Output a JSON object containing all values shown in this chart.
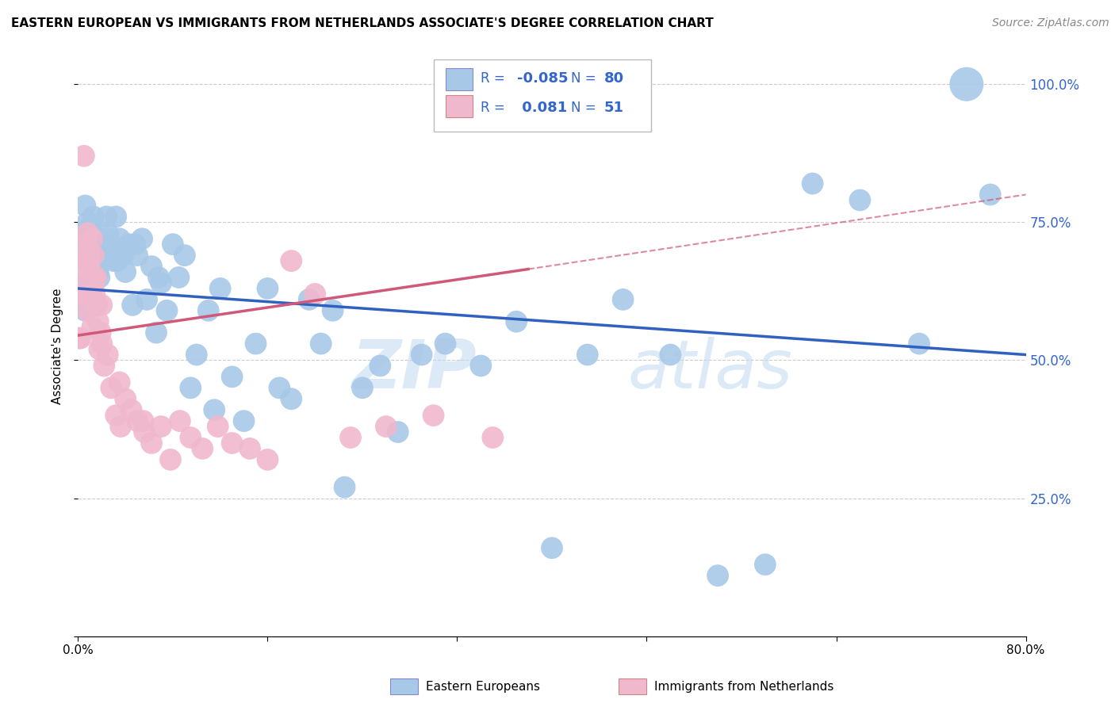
{
  "title": "EASTERN EUROPEAN VS IMMIGRANTS FROM NETHERLANDS ASSOCIATE'S DEGREE CORRELATION CHART",
  "source": "Source: ZipAtlas.com",
  "ylabel": "Associate's Degree",
  "y_ticks": [
    0.0,
    0.25,
    0.5,
    0.75,
    1.0
  ],
  "y_tick_labels": [
    "",
    "25.0%",
    "50.0%",
    "75.0%",
    "100.0%"
  ],
  "x_tick_labels": [
    "0.0%",
    "80.0%"
  ],
  "legend_blue_label": "Eastern Europeans",
  "legend_pink_label": "Immigrants from Netherlands",
  "blue_color": "#a8c8e8",
  "pink_color": "#f0b8cc",
  "blue_line_color": "#3060c0",
  "pink_line_color": "#d05878",
  "watermark": "ZIPatlas",
  "blue_scatter_x": [
    0.002,
    0.004,
    0.005,
    0.006,
    0.007,
    0.008,
    0.009,
    0.01,
    0.011,
    0.012,
    0.013,
    0.014,
    0.015,
    0.016,
    0.017,
    0.018,
    0.019,
    0.02,
    0.022,
    0.024,
    0.026,
    0.028,
    0.03,
    0.032,
    0.035,
    0.038,
    0.04,
    0.043,
    0.046,
    0.05,
    0.054,
    0.058,
    0.062,
    0.066,
    0.07,
    0.075,
    0.08,
    0.085,
    0.09,
    0.095,
    0.1,
    0.11,
    0.115,
    0.12,
    0.13,
    0.14,
    0.15,
    0.16,
    0.17,
    0.18,
    0.195,
    0.205,
    0.215,
    0.225,
    0.24,
    0.255,
    0.27,
    0.29,
    0.31,
    0.34,
    0.37,
    0.4,
    0.43,
    0.46,
    0.5,
    0.54,
    0.58,
    0.62,
    0.66,
    0.71,
    0.003,
    0.006,
    0.01,
    0.018,
    0.025,
    0.033,
    0.048,
    0.068,
    0.75,
    0.77
  ],
  "blue_scatter_y": [
    0.62,
    0.73,
    0.64,
    0.78,
    0.7,
    0.75,
    0.68,
    0.74,
    0.72,
    0.7,
    0.76,
    0.68,
    0.72,
    0.68,
    0.66,
    0.68,
    0.71,
    0.72,
    0.7,
    0.76,
    0.72,
    0.7,
    0.68,
    0.76,
    0.72,
    0.69,
    0.66,
    0.71,
    0.6,
    0.69,
    0.72,
    0.61,
    0.67,
    0.55,
    0.64,
    0.59,
    0.71,
    0.65,
    0.69,
    0.45,
    0.51,
    0.59,
    0.41,
    0.63,
    0.47,
    0.39,
    0.53,
    0.63,
    0.45,
    0.43,
    0.61,
    0.53,
    0.59,
    0.27,
    0.45,
    0.49,
    0.37,
    0.51,
    0.53,
    0.49,
    0.57,
    0.16,
    0.51,
    0.61,
    0.51,
    0.11,
    0.13,
    0.82,
    0.79,
    0.53,
    0.61,
    0.59,
    0.73,
    0.65,
    0.73,
    0.68,
    0.71,
    0.65,
    1.0,
    0.8
  ],
  "blue_scatter_size": [
    50,
    50,
    50,
    50,
    50,
    50,
    50,
    50,
    50,
    50,
    50,
    50,
    50,
    50,
    50,
    50,
    50,
    50,
    50,
    50,
    50,
    50,
    50,
    50,
    50,
    50,
    50,
    50,
    50,
    50,
    50,
    50,
    50,
    50,
    50,
    50,
    50,
    50,
    50,
    50,
    50,
    50,
    50,
    50,
    50,
    50,
    50,
    50,
    50,
    50,
    50,
    50,
    50,
    50,
    50,
    50,
    50,
    50,
    50,
    50,
    50,
    50,
    50,
    50,
    50,
    50,
    50,
    50,
    50,
    50,
    50,
    50,
    50,
    50,
    50,
    50,
    50,
    50,
    120,
    50
  ],
  "pink_scatter_x": [
    0.002,
    0.003,
    0.004,
    0.005,
    0.006,
    0.007,
    0.008,
    0.009,
    0.01,
    0.011,
    0.012,
    0.013,
    0.014,
    0.015,
    0.016,
    0.017,
    0.018,
    0.019,
    0.02,
    0.022,
    0.025,
    0.028,
    0.032,
    0.036,
    0.04,
    0.045,
    0.05,
    0.056,
    0.062,
    0.07,
    0.078,
    0.086,
    0.095,
    0.105,
    0.118,
    0.13,
    0.145,
    0.16,
    0.18,
    0.2,
    0.23,
    0.26,
    0.3,
    0.35,
    0.001,
    0.004,
    0.008,
    0.012,
    0.02,
    0.035,
    0.055
  ],
  "pink_scatter_y": [
    0.54,
    0.62,
    0.62,
    0.87,
    0.69,
    0.71,
    0.73,
    0.67,
    0.69,
    0.66,
    0.72,
    0.69,
    0.62,
    0.65,
    0.6,
    0.57,
    0.52,
    0.55,
    0.53,
    0.49,
    0.51,
    0.45,
    0.4,
    0.38,
    0.43,
    0.41,
    0.39,
    0.37,
    0.35,
    0.38,
    0.32,
    0.39,
    0.36,
    0.34,
    0.38,
    0.35,
    0.34,
    0.32,
    0.68,
    0.62,
    0.36,
    0.38,
    0.4,
    0.36,
    0.54,
    0.64,
    0.59,
    0.56,
    0.6,
    0.46,
    0.39
  ],
  "pink_scatter_size": [
    50,
    50,
    50,
    50,
    50,
    50,
    50,
    50,
    50,
    50,
    50,
    50,
    50,
    50,
    50,
    50,
    50,
    50,
    50,
    50,
    50,
    50,
    50,
    50,
    50,
    50,
    50,
    50,
    50,
    50,
    50,
    50,
    50,
    50,
    50,
    50,
    50,
    50,
    50,
    50,
    50,
    50,
    50,
    50,
    50,
    200,
    50,
    50,
    50,
    50,
    50
  ],
  "xlim": [
    0.0,
    0.8
  ],
  "ylim": [
    0.0,
    1.05
  ],
  "blue_trend": [
    0.0,
    0.8,
    0.63,
    0.51
  ],
  "pink_trend_solid": [
    0.0,
    0.38,
    0.545,
    0.665
  ],
  "pink_trend_dashed": [
    0.38,
    0.8,
    0.665,
    0.8
  ]
}
